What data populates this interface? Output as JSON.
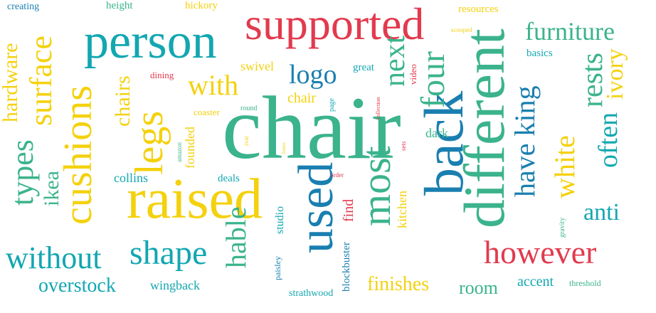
{
  "colors": {
    "teal": "#12a7b1",
    "green": "#3bb38d",
    "red": "#e23a4e",
    "yellow": "#f4d10e",
    "blue": "#1a7fb0"
  },
  "words": [
    {
      "text": "chair",
      "color": "#3bb38d"
    },
    {
      "text": "supported",
      "color": "#e23a4e"
    },
    {
      "text": "person",
      "color": "#12a7b1"
    },
    {
      "text": "raised",
      "color": "#f4d10e"
    },
    {
      "text": "different",
      "color": "#3bb38d"
    },
    {
      "text": "back",
      "color": "#1a7fb0"
    },
    {
      "text": "used",
      "color": "#1a7fb0"
    },
    {
      "text": "most",
      "color": "#3bb38d"
    },
    {
      "text": "cushions",
      "color": "#f4d10e"
    },
    {
      "text": "however",
      "color": "#e23a4e"
    },
    {
      "text": "shape",
      "color": "#12a7b1"
    },
    {
      "text": "without",
      "color": "#12a7b1"
    },
    {
      "text": "furniture",
      "color": "#3bb38d"
    },
    {
      "text": "four",
      "color": "#3bb38d"
    },
    {
      "text": "surface",
      "color": "#f4d10e"
    },
    {
      "text": "legs",
      "color": "#f4d10e"
    },
    {
      "text": "have king",
      "color": "#1a7fb0"
    },
    {
      "text": "white",
      "color": "#f4d10e"
    },
    {
      "text": "rests",
      "color": "#3bb38d"
    },
    {
      "text": "often",
      "color": "#12a7b1"
    },
    {
      "text": "ivory",
      "color": "#f4d10e"
    },
    {
      "text": "anti",
      "color": "#12a7b1"
    },
    {
      "text": "with",
      "color": "#f4d10e"
    },
    {
      "text": "logo",
      "color": "#1a7fb0"
    },
    {
      "text": "next",
      "color": "#3bb38d"
    },
    {
      "text": "hable",
      "color": "#3bb38d"
    },
    {
      "text": "types",
      "color": "#3bb38d"
    },
    {
      "text": "ikea",
      "color": "#3bb38d"
    },
    {
      "text": "hardware",
      "color": "#f4d10e"
    },
    {
      "text": "chairs",
      "color": "#f4d10e"
    },
    {
      "text": "overstock",
      "color": "#12a7b1"
    },
    {
      "text": "finishes",
      "color": "#f4d10e"
    },
    {
      "text": "room",
      "color": "#3bb38d"
    },
    {
      "text": "accent",
      "color": "#12a7b1"
    },
    {
      "text": "wingback",
      "color": "#12a7b1"
    },
    {
      "text": "swivel",
      "color": "#f4d10e"
    },
    {
      "text": "great",
      "color": "#12a7b1"
    },
    {
      "text": "chair",
      "color": "#f4d10e"
    },
    {
      "text": "dark",
      "color": "#3bb38d"
    },
    {
      "text": "collins",
      "color": "#12a7b1"
    },
    {
      "text": "founded",
      "color": "#f4d10e"
    },
    {
      "text": "deals",
      "color": "#12a7b1"
    },
    {
      "text": "find",
      "color": "#e23a4e"
    },
    {
      "text": "kitchen",
      "color": "#f4d10e"
    },
    {
      "text": "studio",
      "color": "#12a7b1"
    },
    {
      "text": "basics",
      "color": "#12a7b1"
    },
    {
      "text": "resources",
      "color": "#f4d10e"
    },
    {
      "text": "height",
      "color": "#3bb38d"
    },
    {
      "text": "hickory",
      "color": "#f4d10e"
    },
    {
      "text": "creating",
      "color": "#1a7fb0"
    },
    {
      "text": "coaster",
      "color": "#f4d10e"
    },
    {
      "text": "strathwood",
      "color": "#12a7b1"
    },
    {
      "text": "blockbuster",
      "color": "#1a7fb0"
    },
    {
      "text": "threshold",
      "color": "#3bb38d"
    },
    {
      "text": "video",
      "color": "#e23a4e"
    },
    {
      "text": "dining",
      "color": "#e23a4e"
    },
    {
      "text": "paisley",
      "color": "#1a7fb0"
    },
    {
      "text": "round",
      "color": "#3bb38d"
    },
    {
      "text": "page",
      "color": "#12a7b1"
    },
    {
      "text": "collection",
      "color": "#e23a4e"
    },
    {
      "text": "scooped",
      "color": "#f4d10e"
    },
    {
      "text": "amazon",
      "color": "#3bb38d"
    },
    {
      "text": "ivar",
      "color": "#f4d10e"
    },
    {
      "text": "home",
      "color": "#f4d10e"
    },
    {
      "text": "sets",
      "color": "#e23a4e"
    },
    {
      "text": "order",
      "color": "#e23a4e"
    },
    {
      "text": "gravity",
      "color": "#3bb38d"
    }
  ]
}
